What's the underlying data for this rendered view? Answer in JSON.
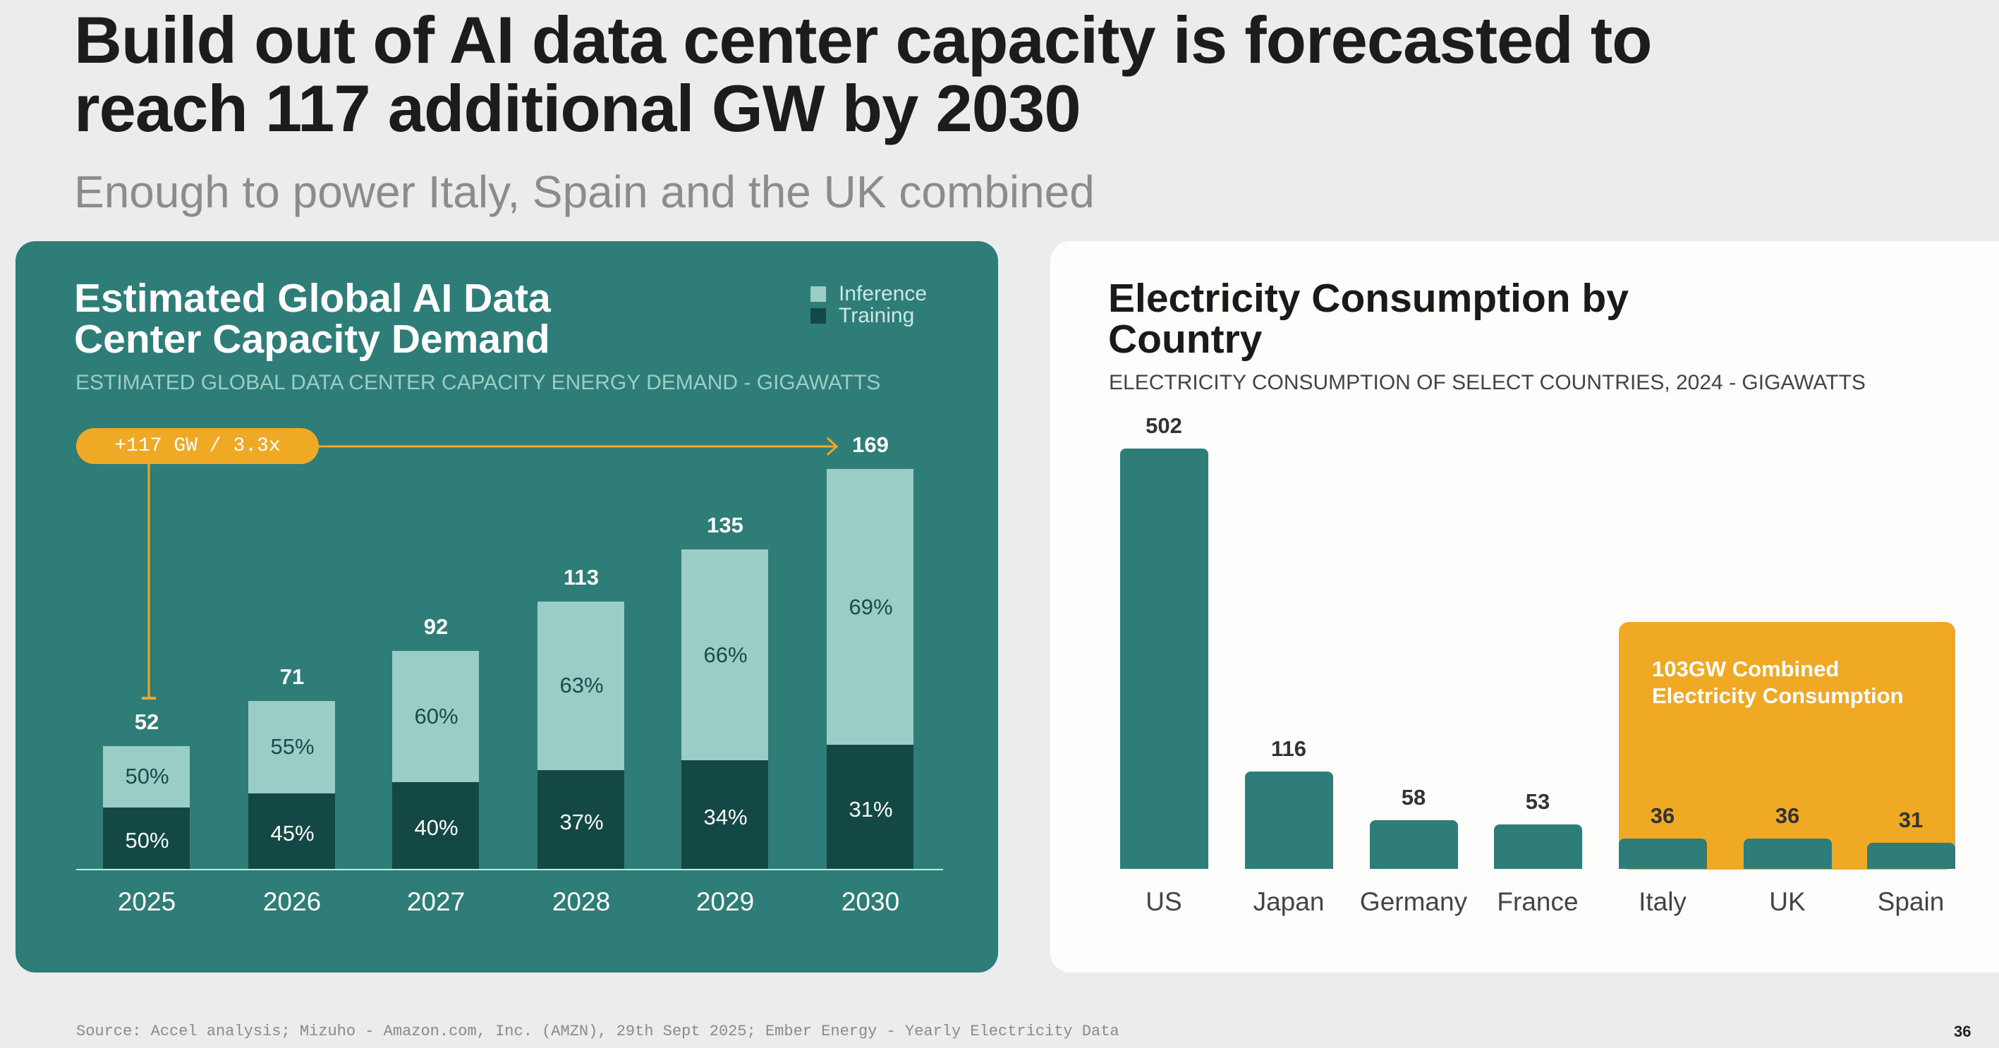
{
  "title": "Build out of AI data center capacity is forecasted to reach 117 additional GW by 2030",
  "subtitle": "Enough to power Italy, Spain and the UK combined",
  "colors": {
    "panel": "#2e7d79",
    "inference": "#9bcdc7",
    "training": "#134844",
    "accent": "#f0a925",
    "country_bar": "#2e7d79"
  },
  "chart_data": [
    {
      "type": "bar",
      "stacked": true,
      "title": "Estimated Global AI Data Center Capacity Demand",
      "subtitle": "ESTIMATED GLOBAL DATA CENTER CAPACITY ENERGY DEMAND - GIGAWATTS",
      "legend": [
        "Inference",
        "Training"
      ],
      "legend_position": "top-right",
      "categories": [
        "2025",
        "2026",
        "2027",
        "2028",
        "2029",
        "2030"
      ],
      "totals": [
        52,
        71,
        92,
        113,
        135,
        169
      ],
      "series": [
        {
          "name": "Training",
          "percent_labels": [
            "50%",
            "45%",
            "40%",
            "37%",
            "34%",
            "31%"
          ],
          "percent": [
            50,
            45,
            40,
            37,
            34,
            31
          ]
        },
        {
          "name": "Inference",
          "percent_labels": [
            "50%",
            "55%",
            "60%",
            "63%",
            "66%",
            "69%"
          ],
          "percent": [
            50,
            55,
            60,
            63,
            66,
            69
          ]
        }
      ],
      "annotation": "+117 GW / 3.3x"
    },
    {
      "type": "bar",
      "title": "Electricity Consumption by Country",
      "subtitle": "ELECTRICITY CONSUMPTION OF SELECT COUNTRIES, 2024 - GIGAWATTS",
      "categories": [
        "US",
        "Japan",
        "Germany",
        "France",
        "Italy",
        "UK",
        "Spain"
      ],
      "values": [
        502,
        116,
        58,
        53,
        36,
        36,
        31
      ],
      "annotation": "103GW Combined Electricity Consumption"
    }
  ],
  "footer": {
    "source": "Source: Accel analysis; Mizuho - Amazon.com, Inc. (AMZN), 29th Sept 2025; Ember Energy - Yearly Electricity Data",
    "page": "36"
  }
}
